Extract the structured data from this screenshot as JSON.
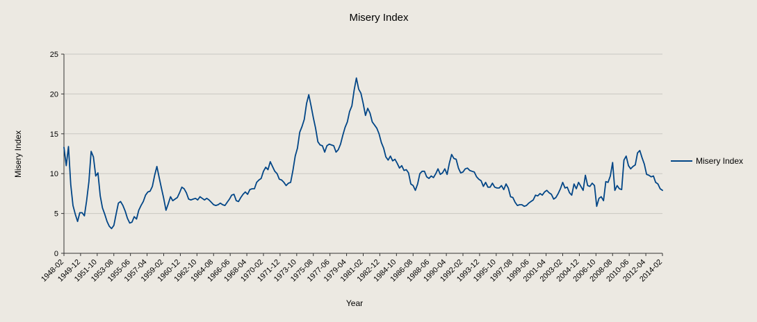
{
  "chart_data": {
    "type": "line",
    "title": "Misery Index",
    "xlabel": "Year",
    "ylabel": "Misery Index",
    "legend": [
      "Misery Index"
    ],
    "legend_position": "right",
    "grid": "horizontal",
    "ylim": [
      0,
      25
    ],
    "y_ticks": [
      0,
      5,
      10,
      15,
      20,
      25
    ],
    "x_tick_labels": [
      "1948-02",
      "1949-12",
      "1951-10",
      "1953-08",
      "1955-06",
      "1957-04",
      "1959-02",
      "1960-12",
      "1962-10",
      "1964-08",
      "1966-06",
      "1968-04",
      "1970-02",
      "1971-12",
      "1973-10",
      "1975-08",
      "1977-06",
      "1979-04",
      "1981-02",
      "1982-12",
      "1984-10",
      "1986-08",
      "1988-06",
      "1990-04",
      "1992-02",
      "1993-12",
      "1995-10",
      "1997-08",
      "1999-06",
      "2001-04",
      "2003-02",
      "2004-12",
      "2006-10",
      "2008-08",
      "2010-06",
      "2012-04",
      "2014-02"
    ],
    "series": [
      {
        "name": "Misery Index",
        "color": "#004586",
        "x_start": "1948-02",
        "x_end": "2014-02",
        "sampling": "quarterly",
        "values": [
          13.3,
          11.0,
          13.4,
          8.6,
          6.0,
          4.9,
          4.0,
          5.1,
          5.1,
          4.7,
          6.6,
          9.0,
          12.8,
          12.1,
          9.7,
          10.1,
          7.2,
          5.7,
          4.9,
          4.0,
          3.4,
          3.1,
          3.5,
          4.9,
          6.3,
          6.5,
          6.0,
          5.3,
          4.4,
          3.8,
          3.9,
          4.6,
          4.3,
          5.4,
          6.0,
          6.5,
          7.3,
          7.7,
          7.8,
          8.4,
          9.8,
          10.9,
          9.5,
          8.2,
          6.9,
          5.4,
          6.2,
          7.1,
          6.6,
          6.8,
          7.0,
          7.6,
          8.3,
          8.1,
          7.6,
          6.8,
          6.7,
          6.8,
          6.9,
          6.7,
          7.1,
          6.9,
          6.7,
          6.9,
          6.7,
          6.4,
          6.1,
          6.0,
          6.1,
          6.3,
          6.1,
          6.0,
          6.4,
          6.8,
          7.3,
          7.4,
          6.6,
          6.5,
          7.0,
          7.4,
          7.7,
          7.4,
          8.0,
          8.1,
          8.1,
          8.9,
          9.2,
          9.4,
          10.3,
          10.8,
          10.5,
          11.5,
          10.9,
          10.3,
          10.0,
          9.3,
          9.2,
          8.9,
          8.5,
          8.8,
          8.9,
          10.4,
          12.2,
          13.2,
          15.2,
          15.9,
          16.8,
          18.8,
          19.9,
          18.5,
          17.0,
          15.7,
          14.0,
          13.6,
          13.5,
          12.7,
          13.5,
          13.7,
          13.6,
          13.5,
          12.7,
          13.0,
          13.7,
          14.8,
          15.8,
          16.5,
          17.8,
          18.5,
          20.5,
          22.0,
          20.6,
          20.1,
          18.8,
          17.3,
          18.2,
          17.6,
          16.5,
          16.1,
          15.7,
          15.0,
          13.9,
          13.2,
          12.1,
          11.7,
          12.2,
          11.6,
          11.8,
          11.3,
          10.7,
          11.0,
          10.4,
          10.5,
          10.1,
          8.7,
          8.5,
          7.9,
          8.7,
          10.0,
          10.3,
          10.3,
          9.6,
          9.4,
          9.7,
          9.5,
          10.0,
          10.6,
          9.9,
          10.1,
          10.6,
          9.9,
          11.3,
          12.4,
          11.9,
          11.8,
          10.7,
          10.1,
          10.2,
          10.6,
          10.7,
          10.4,
          10.3,
          10.2,
          9.6,
          9.3,
          9.1,
          8.4,
          8.9,
          8.3,
          8.3,
          8.8,
          8.3,
          8.2,
          8.2,
          8.5,
          8.0,
          8.7,
          8.2,
          7.1,
          7.0,
          6.4,
          6.0,
          6.1,
          6.1,
          5.9,
          6.0,
          6.3,
          6.5,
          6.7,
          7.3,
          7.2,
          7.5,
          7.3,
          7.7,
          7.9,
          7.6,
          7.4,
          6.8,
          7.0,
          7.5,
          8.1,
          8.9,
          8.2,
          8.3,
          7.6,
          7.3,
          8.7,
          8.1,
          8.9,
          8.4,
          7.9,
          9.8,
          8.5,
          8.4,
          8.8,
          8.5,
          5.9,
          6.9,
          7.1,
          6.6,
          9.0,
          8.9,
          9.7,
          11.4,
          7.9,
          8.5,
          8.1,
          8.0,
          11.7,
          12.2,
          11.0,
          10.6,
          10.9,
          11.1,
          12.6,
          12.9,
          12.0,
          11.2,
          9.9,
          9.8,
          9.6,
          9.7,
          8.9,
          8.7,
          8.1,
          7.9
        ]
      }
    ],
    "colors": {
      "background": "#ece9e2",
      "gridline": "#c9c7c1",
      "axis": "#333333",
      "text": "#000000"
    }
  }
}
